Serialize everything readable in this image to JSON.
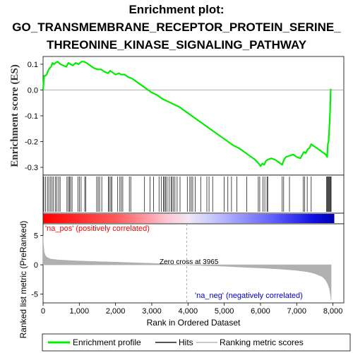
{
  "title_lines": [
    "Enrichment plot:",
    "GO_TRANSMEMBRANE_RECEPTOR_PROTEIN_SERINE_",
    "THREONINE_KINASE_SIGNALING_PATHWAY"
  ],
  "colors": {
    "enrichment": "#00ee00",
    "hits": "#000000",
    "ranking": "#b0b0b0",
    "pos": "#ff0000",
    "neg": "#0000ff",
    "zero_line": "#999999"
  },
  "chart_data": [
    {
      "type": "line",
      "name": "enrichment-profile",
      "ylabel": "Enrichment score (ES)",
      "xlim": [
        0,
        8300
      ],
      "ylim": [
        -0.33,
        0.13
      ],
      "yticks": [
        0.1,
        0.0,
        -0.1,
        -0.2,
        -0.3
      ],
      "ytick_labels": [
        "0.1",
        "0.0",
        "-0.1",
        "-0.2",
        "-0.3"
      ],
      "x": [
        0,
        30,
        60,
        100,
        140,
        180,
        220,
        260,
        300,
        340,
        400,
        480,
        560,
        640,
        700,
        760,
        820,
        900,
        980,
        1060,
        1120,
        1200,
        1300,
        1400,
        1500,
        1600,
        1700,
        1800,
        1850,
        1900,
        2000,
        2100,
        2150,
        2250,
        2350,
        2450,
        2550,
        2700,
        2850,
        3000,
        3150,
        3300,
        3450,
        3600,
        3750,
        3900,
        4050,
        4200,
        4350,
        4500,
        4650,
        4800,
        4950,
        5100,
        5250,
        5400,
        5550,
        5700,
        5850,
        5950,
        6000,
        6050,
        6100,
        6150,
        6200,
        6300,
        6400,
        6500,
        6600,
        6650,
        6700,
        6800,
        6900,
        7000,
        7100,
        7200,
        7250,
        7300,
        7350,
        7400,
        7500,
        7600,
        7700,
        7800,
        7840,
        7860,
        7880,
        7900,
        7920,
        7940
      ],
      "y": [
        0.0,
        0.055,
        0.055,
        0.06,
        0.075,
        0.085,
        0.09,
        0.105,
        0.1,
        0.105,
        0.11,
        0.1,
        0.095,
        0.09,
        0.105,
        0.1,
        0.095,
        0.105,
        0.1,
        0.11,
        0.11,
        0.105,
        0.095,
        0.085,
        0.08,
        0.08,
        0.07,
        0.065,
        0.075,
        0.07,
        0.06,
        0.065,
        0.06,
        0.06,
        0.05,
        0.045,
        0.035,
        0.02,
        0.005,
        -0.01,
        -0.02,
        -0.035,
        -0.045,
        -0.055,
        -0.065,
        -0.08,
        -0.095,
        -0.11,
        -0.125,
        -0.14,
        -0.155,
        -0.17,
        -0.185,
        -0.2,
        -0.215,
        -0.225,
        -0.24,
        -0.255,
        -0.27,
        -0.285,
        -0.295,
        -0.285,
        -0.29,
        -0.275,
        -0.27,
        -0.265,
        -0.27,
        -0.28,
        -0.29,
        -0.27,
        -0.26,
        -0.255,
        -0.25,
        -0.26,
        -0.265,
        -0.24,
        -0.245,
        -0.23,
        -0.225,
        -0.21,
        -0.22,
        -0.23,
        -0.24,
        -0.25,
        -0.26,
        -0.21,
        -0.2,
        -0.145,
        -0.085,
        0.005
      ]
    },
    {
      "type": "scatter",
      "name": "hits",
      "xlim": [
        0,
        8300
      ],
      "x": [
        20,
        70,
        120,
        160,
        210,
        250,
        290,
        340,
        380,
        430,
        470,
        660,
        700,
        730,
        760,
        800,
        960,
        1000,
        1050,
        1150,
        1180,
        1480,
        1520,
        1560,
        1620,
        1800,
        1830,
        1870,
        1900,
        2060,
        2120,
        2160,
        2200,
        2380,
        2420,
        2800,
        2950,
        3050,
        3200,
        3260,
        3320,
        3350,
        3380,
        3420,
        3480,
        3530,
        3560,
        3600,
        3640,
        3700,
        3780,
        3980,
        4050,
        4090,
        4130,
        4200,
        4350,
        4520,
        4580,
        4680,
        5000,
        5100,
        5200,
        5350,
        5620,
        5940,
        5980,
        6070,
        6120,
        6180,
        6200,
        6600,
        6640,
        6800,
        7180,
        7220,
        7290,
        7400,
        7820,
        7840,
        7860,
        7880,
        7900,
        7920,
        7940,
        7950
      ]
    },
    {
      "type": "area",
      "name": "ranking-metric",
      "ylabel": "Ranked list metric (PreRanked)",
      "xlabel": "Rank in Ordered Dataset",
      "xlim": [
        0,
        8300
      ],
      "ylim": [
        -6.5,
        7
      ],
      "yticks": [
        5,
        0,
        -5
      ],
      "ytick_labels": [
        "5",
        "0",
        "-5"
      ],
      "xticks": [
        0,
        1000,
        2000,
        3000,
        4000,
        5000,
        6000,
        7000,
        8000
      ],
      "xtick_labels": [
        "0",
        "1,000",
        "2,000",
        "3,000",
        "4,000",
        "5,000",
        "6,000",
        "7,000",
        "8,000"
      ],
      "x": [
        0,
        10,
        30,
        60,
        100,
        200,
        400,
        700,
        1000,
        1500,
        2000,
        2500,
        3000,
        3500,
        3965,
        4500,
        5000,
        5500,
        6000,
        6500,
        7000,
        7300,
        7500,
        7700,
        7800,
        7860,
        7900,
        7930,
        7950
      ],
      "y": [
        5.0,
        3.5,
        2.2,
        1.6,
        1.3,
        1.0,
        0.85,
        0.75,
        0.65,
        0.55,
        0.45,
        0.35,
        0.25,
        0.12,
        0.0,
        -0.15,
        -0.25,
        -0.4,
        -0.55,
        -0.7,
        -0.95,
        -1.2,
        -1.5,
        -2.0,
        -2.6,
        -3.3,
        -4.0,
        -5.0,
        -6.0
      ],
      "zero_cross_label": "Zero cross at 3965",
      "pos_label": "'na_pos' (positively correlated)",
      "neg_label": "'na_neg' (negatively correlated)"
    }
  ],
  "legend": {
    "placement": "bottom",
    "items": [
      {
        "label": "Enrichment profile"
      },
      {
        "label": "Hits"
      },
      {
        "label": "Ranking metric scores"
      }
    ]
  }
}
